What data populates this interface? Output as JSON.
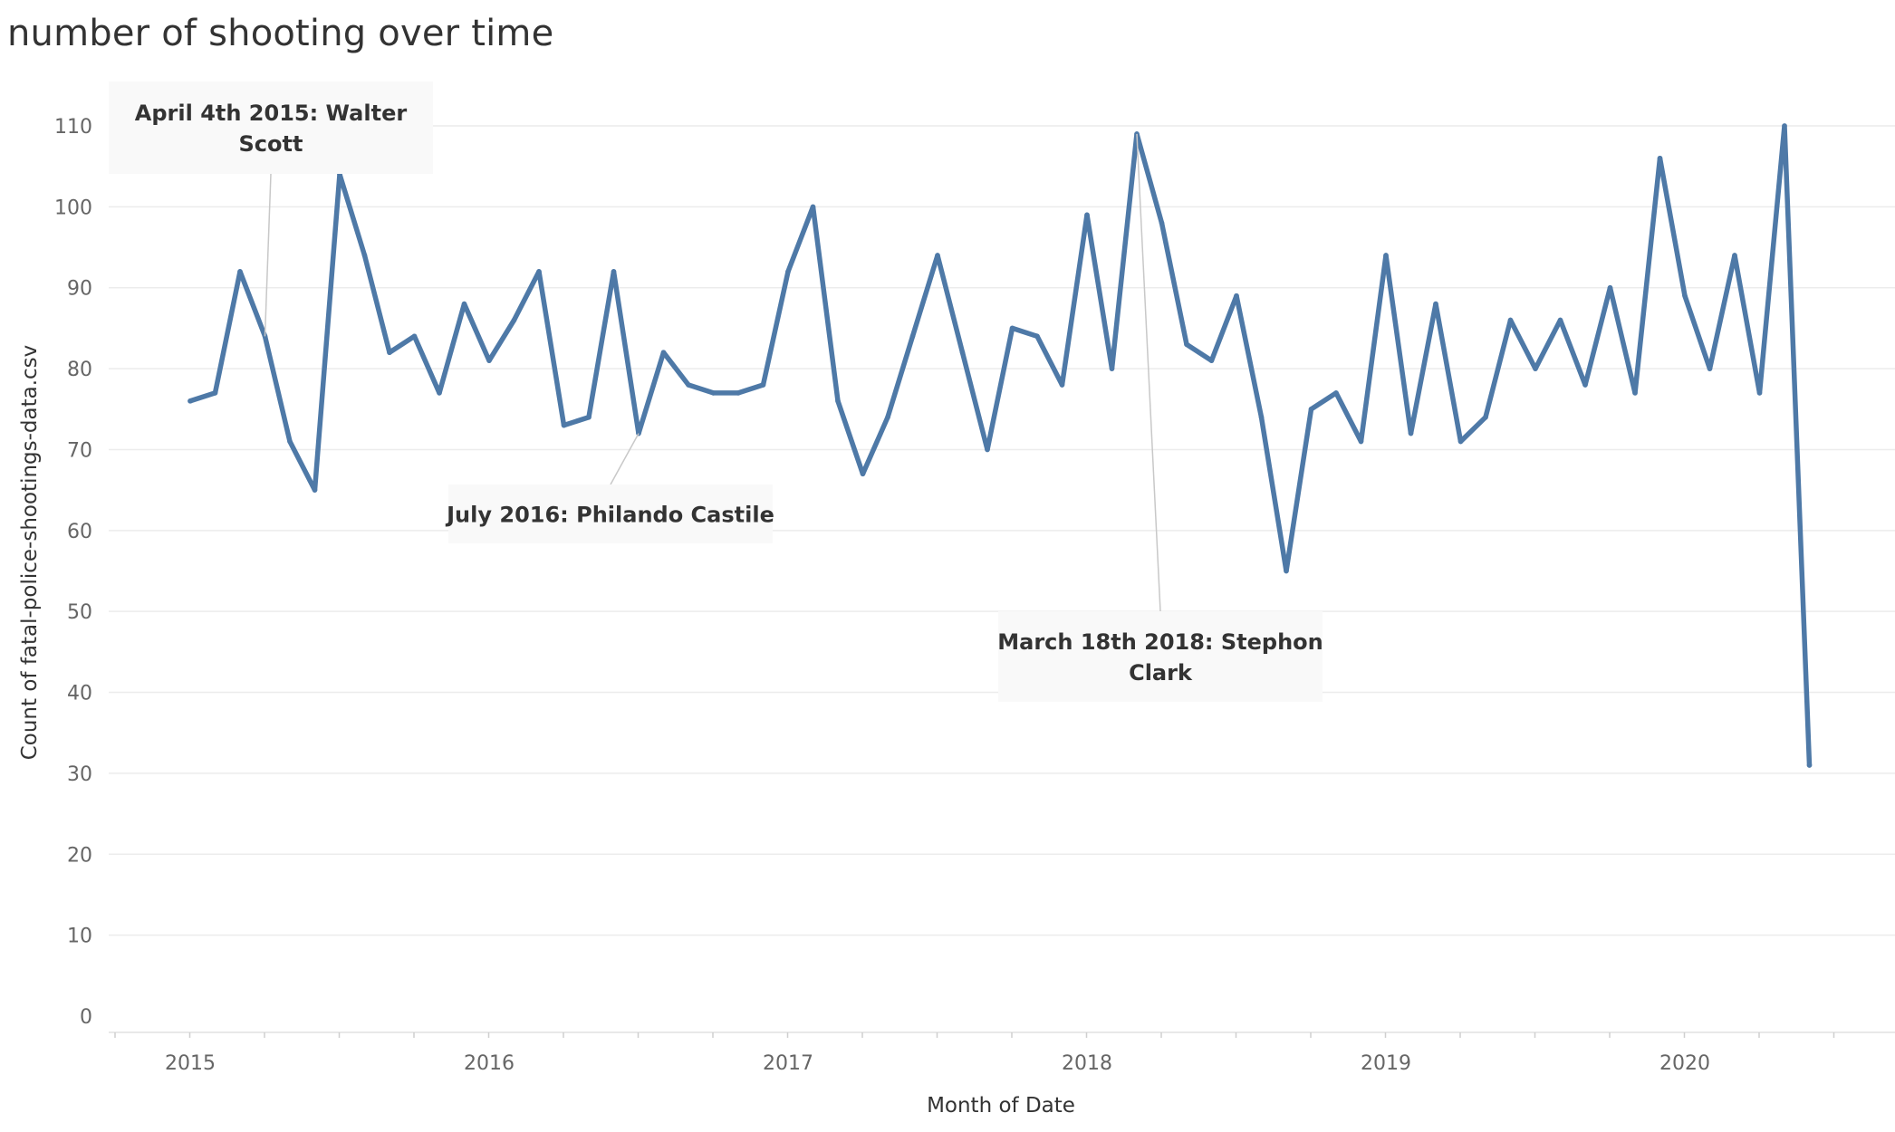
{
  "chart_data": {
    "type": "line",
    "title": "number of shooting over time",
    "xlabel": "Month of Date",
    "ylabel": "Count of fatal-police-shootings-data.csv",
    "ylim": [
      0,
      110
    ],
    "y_ticks": [
      0,
      10,
      20,
      30,
      40,
      50,
      60,
      70,
      80,
      90,
      100,
      110
    ],
    "x_tick_labels": [
      "2015",
      "2016",
      "2017",
      "2018",
      "2019",
      "2020"
    ],
    "grid": true,
    "series": [
      {
        "color": "#4e79a7",
        "x": [
          "2015-01",
          "2015-02",
          "2015-03",
          "2015-04",
          "2015-05",
          "2015-06",
          "2015-07",
          "2015-08",
          "2015-09",
          "2015-10",
          "2015-11",
          "2015-12",
          "2016-01",
          "2016-02",
          "2016-03",
          "2016-04",
          "2016-05",
          "2016-06",
          "2016-07",
          "2016-08",
          "2016-09",
          "2016-10",
          "2016-11",
          "2016-12",
          "2017-01",
          "2017-02",
          "2017-03",
          "2017-04",
          "2017-05",
          "2017-06",
          "2017-07",
          "2017-08",
          "2017-09",
          "2017-10",
          "2017-11",
          "2017-12",
          "2018-01",
          "2018-02",
          "2018-03",
          "2018-04",
          "2018-05",
          "2018-06",
          "2018-07",
          "2018-08",
          "2018-09",
          "2018-10",
          "2018-11",
          "2018-12",
          "2019-01",
          "2019-02",
          "2019-03",
          "2019-04",
          "2019-05",
          "2019-06",
          "2019-07",
          "2019-08",
          "2019-09",
          "2019-10",
          "2019-11",
          "2019-12",
          "2020-01",
          "2020-02",
          "2020-03",
          "2020-04",
          "2020-05",
          "2020-06"
        ],
        "values": [
          76,
          77,
          92,
          84,
          71,
          65,
          104,
          94,
          82,
          84,
          77,
          88,
          81,
          86,
          92,
          73,
          74,
          92,
          72,
          82,
          78,
          77,
          77,
          78,
          92,
          100,
          76,
          67,
          74,
          84,
          94,
          82,
          70,
          85,
          84,
          78,
          99,
          80,
          109,
          98,
          83,
          81,
          89,
          74,
          55,
          75,
          77,
          71,
          94,
          72,
          88,
          71,
          74,
          86,
          80,
          86,
          78,
          90,
          77,
          106,
          89,
          80,
          94,
          77,
          110,
          31
        ]
      }
    ],
    "annotations": [
      {
        "text_lines": [
          "April 4th 2015: Walter",
          "Scott"
        ],
        "x": "2015-04",
        "y": 84
      },
      {
        "text_lines": [
          "July 2016: Philando Castile"
        ],
        "x": "2016-07",
        "y": 72
      },
      {
        "text_lines": [
          "March 18th 2018: Stephon",
          "Clark"
        ],
        "x": "2018-03",
        "y": 109
      }
    ]
  }
}
